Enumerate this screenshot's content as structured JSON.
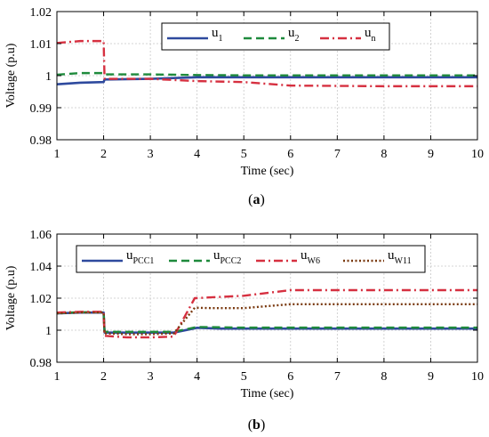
{
  "chart_data": [
    {
      "type": "line",
      "panel_label": "(a)",
      "panel_letter": "a",
      "xlabel": "Time (sec)",
      "ylabel": "Voltage (p.u)",
      "xlim": [
        1,
        10
      ],
      "ylim": [
        0.98,
        1.02
      ],
      "xticks": [
        1,
        2,
        3,
        4,
        5,
        6,
        7,
        8,
        9,
        10
      ],
      "yticks": [
        {
          "v": 0.98,
          "label": "0.98"
        },
        {
          "v": 0.99,
          "label": "0.99"
        },
        {
          "v": 1.0,
          "label": "1"
        },
        {
          "v": 1.01,
          "label": "1.01"
        },
        {
          "v": 1.02,
          "label": "1.02"
        }
      ],
      "grid": true,
      "legend_placement": "top-right",
      "series": [
        {
          "legend_base": "u",
          "legend_sub": "1",
          "color": "#2e4a9e",
          "dash": "solid",
          "x": [
            1,
            1.5,
            2,
            2.02,
            3,
            4,
            5,
            6,
            7,
            8,
            9,
            10
          ],
          "y": [
            0.9973,
            0.9978,
            0.998,
            0.9988,
            0.999,
            0.9995,
            0.9995,
            0.9995,
            0.9995,
            0.9995,
            0.9995,
            0.9995
          ]
        },
        {
          "legend_base": "u",
          "legend_sub": "2",
          "color": "#1e8a3c",
          "dash": "dashed",
          "x": [
            1,
            1.5,
            2,
            2.02,
            3,
            4,
            5,
            6,
            7,
            8,
            9,
            10
          ],
          "y": [
            1.0003,
            1.0008,
            1.0008,
            1.0004,
            1.0004,
            1.0002,
            1.0001,
            1.0001,
            1.0001,
            1.0001,
            1.0001,
            1.0001
          ]
        },
        {
          "legend_base": "u",
          "legend_sub": "n",
          "color": "#d63040",
          "dash": "dashdot",
          "x": [
            1,
            1.5,
            2,
            2.02,
            3,
            4,
            5,
            6,
            7,
            8,
            9,
            10
          ],
          "y": [
            1.0102,
            1.0108,
            1.0108,
            0.999,
            0.999,
            0.9983,
            0.998,
            0.9969,
            0.9968,
            0.9967,
            0.9967,
            0.9967
          ]
        }
      ]
    },
    {
      "type": "line",
      "panel_label": "(b)",
      "panel_letter": "b",
      "xlabel": "Time (sec)",
      "ylabel": "Voltage (p.u)",
      "xlim": [
        1,
        10
      ],
      "ylim": [
        0.98,
        1.06
      ],
      "xticks": [
        1,
        2,
        3,
        4,
        5,
        6,
        7,
        8,
        9,
        10
      ],
      "yticks": [
        {
          "v": 0.98,
          "label": "0.98"
        },
        {
          "v": 1.0,
          "label": "1"
        },
        {
          "v": 1.02,
          "label": "1.02"
        },
        {
          "v": 1.04,
          "label": "1.04"
        },
        {
          "v": 1.06,
          "label": "1.06"
        }
      ],
      "grid": true,
      "legend_placement": "top",
      "series": [
        {
          "legend_base": "u",
          "legend_sub": "PCC1",
          "color": "#2e4a9e",
          "dash": "solid",
          "x": [
            1,
            1.5,
            2,
            2.02,
            3,
            3.5,
            4,
            4.5,
            5,
            6,
            7,
            8,
            9,
            10
          ],
          "y": [
            1.0105,
            1.011,
            1.011,
            0.9985,
            0.9985,
            0.9985,
            1.0015,
            1.001,
            1.001,
            1.001,
            1.001,
            1.001,
            1.001,
            1.001
          ]
        },
        {
          "legend_base": "u",
          "legend_sub": "PCC2",
          "color": "#1e8a3c",
          "dash": "dashed",
          "x": [
            1,
            1.5,
            2,
            2.02,
            3,
            3.5,
            4,
            4.5,
            5,
            6,
            7,
            8,
            9,
            10
          ],
          "y": [
            1.0107,
            1.0112,
            1.0112,
            0.999,
            0.999,
            0.999,
            1.002,
            1.0018,
            1.0016,
            1.0016,
            1.0016,
            1.0016,
            1.0016,
            1.0016
          ]
        },
        {
          "legend_base": "u",
          "legend_sub": "W6",
          "color": "#d63040",
          "dash": "dashdot",
          "x": [
            1,
            1.5,
            2,
            2.02,
            2.5,
            3,
            3.5,
            3.95,
            4.3,
            5,
            6,
            7,
            8,
            9,
            10
          ],
          "y": [
            1.011,
            1.0115,
            1.0115,
            0.9965,
            0.9955,
            0.9955,
            0.996,
            1.02,
            1.0205,
            1.0215,
            1.025,
            1.025,
            1.025,
            1.025,
            1.025
          ]
        },
        {
          "legend_base": "u",
          "legend_sub": "W11",
          "color": "#7a3a10",
          "dash": "dotted",
          "x": [
            1,
            1.5,
            2,
            2.02,
            2.5,
            3,
            3.5,
            3.95,
            4.3,
            5,
            6,
            7,
            8,
            9,
            10
          ],
          "y": [
            1.0105,
            1.011,
            1.011,
            0.998,
            0.9975,
            0.9975,
            0.998,
            1.014,
            1.0138,
            1.0138,
            1.0162,
            1.0162,
            1.0162,
            1.0162,
            1.0162
          ]
        }
      ]
    }
  ]
}
